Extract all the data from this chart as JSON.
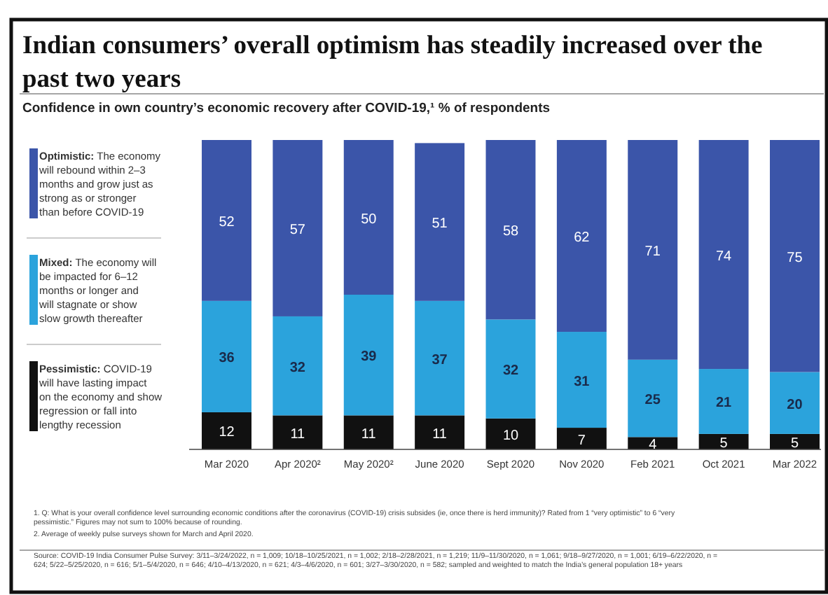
{
  "chart_data": {
    "type": "bar",
    "stacked": true,
    "title": "Indian consumers’ overall optimism has steadily increased over the past two years",
    "subtitle": "Confidence in own country’s economic recovery after COVID-19,¹ % of respondents",
    "categories": [
      "Mar 2020",
      "Apr 2020²",
      "May 2020²",
      "June 2020",
      "Sept 2020",
      "Nov 2020",
      "Feb 2021",
      "Oct 2021",
      "Mar 2022"
    ],
    "series": [
      {
        "name": "Pessimistic: COVID-19 will have lasting impact on the economy and show regression or fall into lengthy recession",
        "color": "#111111",
        "values": [
          12,
          11,
          11,
          11,
          10,
          7,
          4,
          5,
          5
        ]
      },
      {
        "name": "Mixed: The economy will be impacted for 6–12 months or longer and will stagnate or show slow growth thereafter",
        "color": "#2ba3dc",
        "values": [
          36,
          32,
          39,
          37,
          32,
          31,
          25,
          21,
          20
        ]
      },
      {
        "name": "Optimistic: The economy will rebound within 2–3 months and grow just as strong as or stronger than before COVID-19",
        "color": "#3b55a9",
        "values": [
          52,
          57,
          50,
          51,
          58,
          62,
          71,
          74,
          75
        ]
      }
    ],
    "data_labels": true,
    "legend": "left",
    "annotations": [
      "1. Q: What is your overall confidence level surrounding economic conditions after the coronavirus (COVID-19) crisis subsides (ie, once there is herd immunity)? Rated from 1 “very optimistic” to 6 “very pessimistic.” Figures may not sum to 100% because of rounding.",
      "2. Average of weekly pulse surveys shown for March and April 2020.",
      "Source: COVID-19 India Consumer Pulse Survey: 3/11–3/24/2022, n = 1,009; 10/18–10/25/2021, n = 1,002; 2/18–2/28/2021, n = 1,219; 11/9–11/30/2020, n = 1,061; 9/18–9/27/2020, n = 1,001; 6/19–6/22/2020, n = 624; 5/22–5/25/2020, n = 616; 5/1–5/4/2020, n = 646; 4/10–4/13/2020, n = 621; 4/3–4/6/2020, n = 601; 3/27–3/30/2020, n = 582; sampled and weighted to match the India’s general population 18+ years"
    ]
  }
}
